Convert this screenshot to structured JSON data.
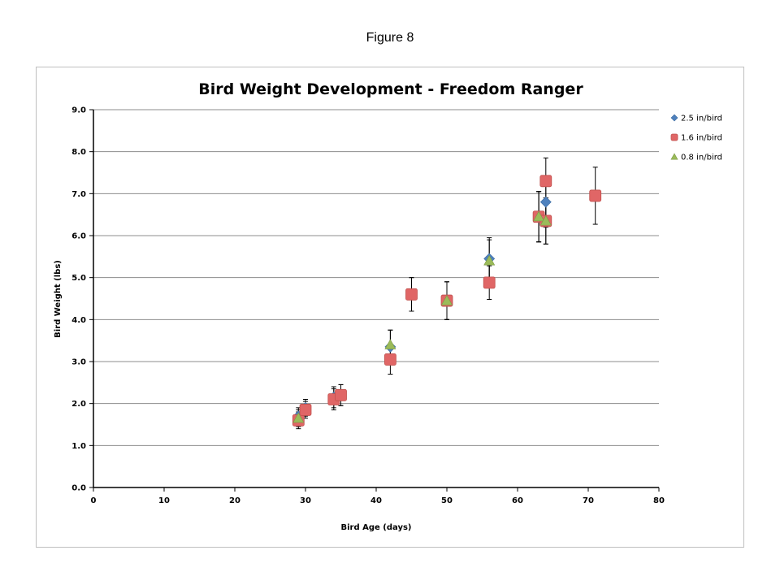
{
  "figure_label": "Figure 8",
  "chart_data": {
    "type": "scatter",
    "title": "Bird Weight Development - Freedom Ranger",
    "xlabel": "Bird Age (days)",
    "ylabel": "Bird Weight (lbs)",
    "xlim": [
      0,
      80
    ],
    "ylim": [
      0,
      9
    ],
    "x_ticks": [
      0,
      10,
      20,
      30,
      40,
      50,
      60,
      70,
      80
    ],
    "x_tick_labels": [
      "0",
      "10",
      "20",
      "30",
      "40",
      "50",
      "60",
      "70",
      "80"
    ],
    "y_ticks": [
      0,
      1,
      2,
      3,
      4,
      5,
      6,
      7,
      8,
      9
    ],
    "y_tick_labels": [
      "0.0",
      "1.0",
      "2.0",
      "3.0",
      "4.0",
      "5.0",
      "6.0",
      "7.0",
      "8.0",
      "9.0"
    ],
    "grid": "horizontal",
    "legend_position": "right",
    "series": [
      {
        "name": "2.5 in/bird",
        "marker": "diamond",
        "color": "#4f81bd",
        "points": [
          {
            "x": 29,
            "y": 1.7,
            "err": 0.2
          },
          {
            "x": 30,
            "y": 1.9,
            "err": 0.2
          },
          {
            "x": 34,
            "y": 2.15,
            "err": 0.25
          },
          {
            "x": 35,
            "y": 2.2,
            "err": 0.25
          },
          {
            "x": 42,
            "y": 3.35,
            "err": 0.4
          },
          {
            "x": 45,
            "y": 4.6,
            "err": 0.4
          },
          {
            "x": 50,
            "y": 4.45,
            "err": 0.45
          },
          {
            "x": 56,
            "y": 5.45,
            "err": 0.5
          },
          {
            "x": 63,
            "y": 6.45,
            "err": 0.6
          },
          {
            "x": 64,
            "y": 6.8,
            "err": 0.6
          }
        ]
      },
      {
        "name": "1.6 in/bird",
        "marker": "square",
        "color": "#e06666",
        "points": [
          {
            "x": 29,
            "y": 1.6,
            "err": 0.2
          },
          {
            "x": 30,
            "y": 1.85,
            "err": 0.2
          },
          {
            "x": 34,
            "y": 2.1,
            "err": 0.25
          },
          {
            "x": 35,
            "y": 2.2,
            "err": 0.25
          },
          {
            "x": 42,
            "y": 3.05,
            "err": 0.35
          },
          {
            "x": 45,
            "y": 4.6,
            "err": 0.4
          },
          {
            "x": 50,
            "y": 4.45,
            "err": 0.45
          },
          {
            "x": 56,
            "y": 4.88,
            "err": 0.4
          },
          {
            "x": 63,
            "y": 6.45,
            "err": 0.6
          },
          {
            "x": 64,
            "y": 7.3,
            "err": 0.55
          },
          {
            "x": 64,
            "y": 6.35,
            "err": 0.55
          },
          {
            "x": 71,
            "y": 6.95,
            "err": 0.68
          }
        ]
      },
      {
        "name": "0.8 in/bird",
        "marker": "triangle",
        "color": "#9bbb59",
        "points": [
          {
            "x": 29,
            "y": 1.65,
            "err": 0.2
          },
          {
            "x": 42,
            "y": 3.4,
            "err": 0.35
          },
          {
            "x": 50,
            "y": 4.45,
            "err": 0.45
          },
          {
            "x": 56,
            "y": 5.4,
            "err": 0.5
          },
          {
            "x": 63,
            "y": 6.45,
            "err": 0.6
          },
          {
            "x": 64,
            "y": 6.35,
            "err": 0.55
          }
        ]
      }
    ]
  }
}
